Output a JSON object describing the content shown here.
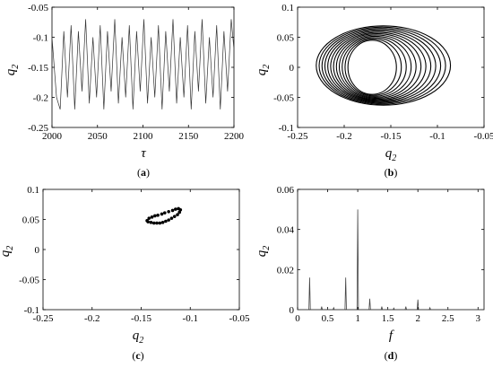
{
  "chart_data": [
    {
      "panel": "(a)",
      "type": "line",
      "xlabel": "τ",
      "ylabel": "q2",
      "xlim": [
        2000,
        2200
      ],
      "ylim": [
        -0.25,
        -0.05
      ],
      "xticks": [
        "2000",
        "2050",
        "2100",
        "2150",
        "2200"
      ],
      "yticks": [
        "-0.05",
        "-0.1",
        "-0.15",
        "-0.2",
        "-0.25"
      ],
      "series": [
        {
          "x": [
            2000,
            2005,
            2009,
            2013,
            2017,
            2021,
            2025,
            2029,
            2033,
            2037,
            2041,
            2045,
            2049,
            2053,
            2057,
            2061,
            2065,
            2069,
            2073,
            2077,
            2081,
            2085,
            2089,
            2093,
            2097,
            2101,
            2105,
            2109,
            2113,
            2117,
            2121,
            2125,
            2129,
            2133,
            2137,
            2141,
            2145,
            2149,
            2153,
            2157,
            2161,
            2165,
            2169,
            2173,
            2177,
            2181,
            2185,
            2189,
            2193,
            2197,
            2200
          ],
          "y": [
            -0.1,
            -0.2,
            -0.22,
            -0.09,
            -0.2,
            -0.08,
            -0.22,
            -0.09,
            -0.19,
            -0.07,
            -0.21,
            -0.1,
            -0.2,
            -0.08,
            -0.22,
            -0.09,
            -0.19,
            -0.07,
            -0.21,
            -0.1,
            -0.2,
            -0.08,
            -0.22,
            -0.09,
            -0.19,
            -0.07,
            -0.21,
            -0.1,
            -0.2,
            -0.08,
            -0.22,
            -0.09,
            -0.19,
            -0.07,
            -0.21,
            -0.1,
            -0.2,
            -0.08,
            -0.22,
            -0.09,
            -0.19,
            -0.07,
            -0.21,
            -0.1,
            -0.2,
            -0.08,
            -0.22,
            -0.09,
            -0.19,
            -0.07,
            -0.12
          ]
        }
      ]
    },
    {
      "panel": "(b)",
      "type": "line",
      "xlabel": "q2",
      "ylabel": "q2",
      "xlim": [
        -0.25,
        -0.05
      ],
      "ylim": [
        -0.1,
        0.1
      ],
      "xticks": [
        "-0.25",
        "-0.2",
        "-0.15",
        "-0.1",
        "-0.05"
      ],
      "yticks": [
        "0.1",
        "0.05",
        "0",
        "-0.05",
        "-0.1"
      ],
      "orbit": {
        "outer": {
          "cx": -0.158,
          "cy": 0.003,
          "rx": 0.072,
          "ry": 0.066
        },
        "inner": {
          "cx": -0.17,
          "cy": 0.0,
          "rx": 0.026,
          "ry": 0.045
        },
        "ring_count": 12
      }
    },
    {
      "panel": "(c)",
      "type": "scatter",
      "xlabel": "q2",
      "ylabel": "q2",
      "xlim": [
        -0.25,
        -0.05
      ],
      "ylim": [
        -0.1,
        0.1
      ],
      "xticks": [
        "-0.25",
        "-0.2",
        "-0.15",
        "-0.1",
        "-0.05"
      ],
      "yticks": [
        "0.1",
        "0.05",
        "0",
        "-0.05",
        "-0.1"
      ],
      "points": [
        [
          -0.144,
          0.048
        ],
        [
          -0.142,
          0.052
        ],
        [
          -0.139,
          0.054
        ],
        [
          -0.136,
          0.056
        ],
        [
          -0.133,
          0.057
        ],
        [
          -0.129,
          0.059
        ],
        [
          -0.126,
          0.061
        ],
        [
          -0.122,
          0.063
        ],
        [
          -0.118,
          0.065
        ],
        [
          -0.115,
          0.067
        ],
        [
          -0.112,
          0.068
        ],
        [
          -0.11,
          0.066
        ],
        [
          -0.111,
          0.062
        ],
        [
          -0.113,
          0.058
        ],
        [
          -0.116,
          0.055
        ],
        [
          -0.119,
          0.052
        ],
        [
          -0.122,
          0.049
        ],
        [
          -0.125,
          0.047
        ],
        [
          -0.128,
          0.045
        ],
        [
          -0.131,
          0.044
        ],
        [
          -0.134,
          0.044
        ],
        [
          -0.137,
          0.044
        ],
        [
          -0.14,
          0.045
        ],
        [
          -0.143,
          0.046
        ]
      ]
    },
    {
      "panel": "(d)",
      "type": "line",
      "xlabel": "f",
      "ylabel": "q2",
      "xlim": [
        0,
        3.1
      ],
      "ylim": [
        0,
        0.06
      ],
      "xticks": [
        "0",
        "0.5",
        "1",
        "1.5",
        "2",
        "2.5",
        "3"
      ],
      "yticks": [
        "0.06",
        "0.04",
        "0.02",
        "0"
      ],
      "peaks": [
        {
          "f": 0.2,
          "amp": 0.016
        },
        {
          "f": 0.4,
          "amp": 0.0015
        },
        {
          "f": 0.6,
          "amp": 0.001
        },
        {
          "f": 0.8,
          "amp": 0.016
        },
        {
          "f": 1.0,
          "amp": 0.05
        },
        {
          "f": 1.2,
          "amp": 0.0055
        },
        {
          "f": 1.4,
          "amp": 0.0015
        },
        {
          "f": 1.6,
          "amp": 0.0008
        },
        {
          "f": 1.8,
          "amp": 0.0015
        },
        {
          "f": 2.0,
          "amp": 0.005
        },
        {
          "f": 2.2,
          "amp": 0.001
        }
      ]
    }
  ]
}
